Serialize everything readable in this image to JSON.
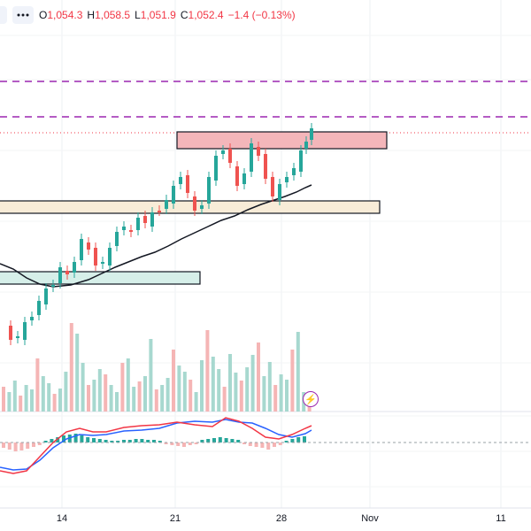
{
  "legend": {
    "open_key": "O",
    "open_val": "1,054.3",
    "high_key": "H",
    "high_val": "1,058.5",
    "low_key": "L",
    "low_val": "1,051.9",
    "close_key": "C",
    "close_val": "1,052.4",
    "change": "−1.4 (−0.13%)"
  },
  "date_axis": {
    "labels": [
      "14",
      "21",
      "28",
      "Nov",
      "11"
    ]
  },
  "icons": {
    "flash": "flash-icon",
    "dots": "more-dots-icon"
  },
  "colors": {
    "up": "#26a69a",
    "down": "#ef5350",
    "ma": "#131722",
    "macd": "#2962ff",
    "signal": "#f23645",
    "dashed_level": "#9c27b0",
    "zone_red": "#f4b6ba",
    "zone_beige": "#f8ecd8",
    "zone_teal": "#d6efe9"
  }
}
